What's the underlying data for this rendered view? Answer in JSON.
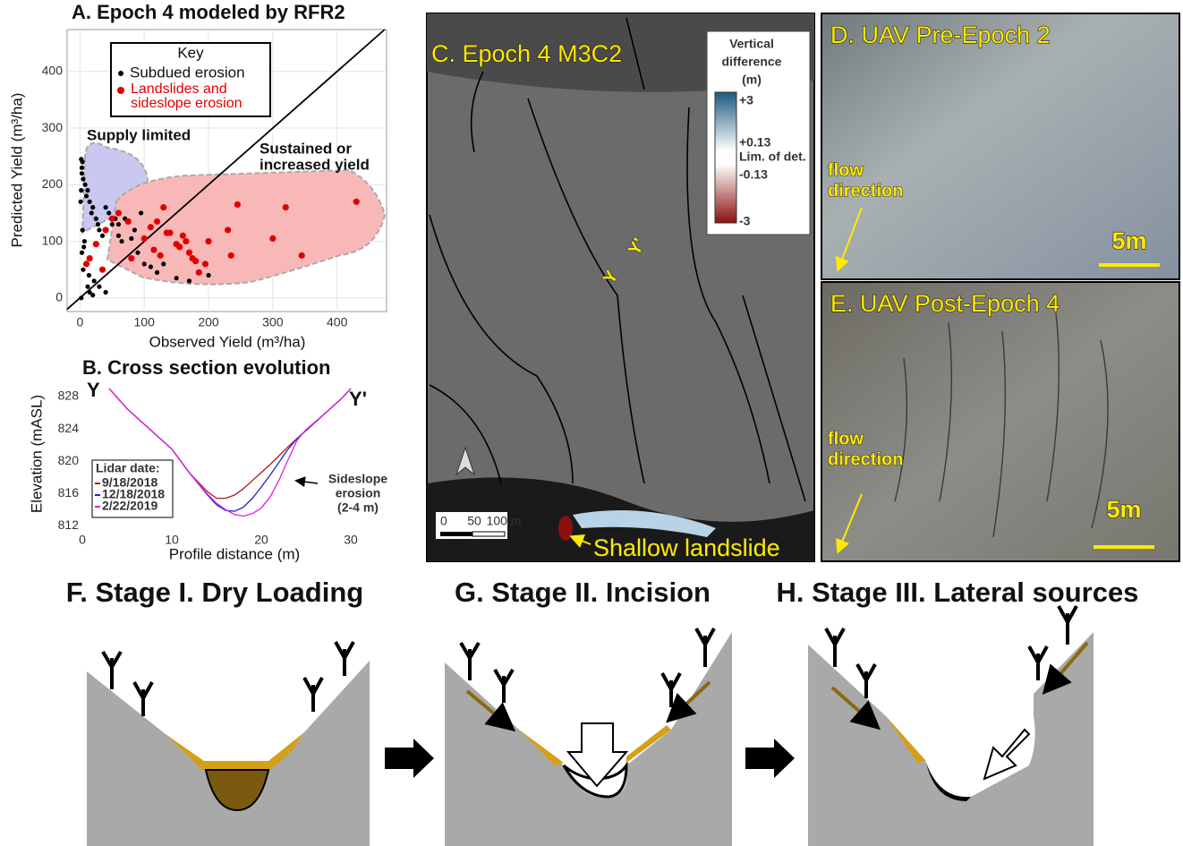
{
  "chart_data": [
    {
      "type": "scatter",
      "title": "A. Epoch 4 modeled by RFR2",
      "x_label": "Observed Yield (m³/ha)",
      "y_label": "Predicted Yield (m³/ha)",
      "xlim": [
        -20,
        477
      ],
      "ylim": [
        -24,
        474
      ],
      "xticks": [
        0,
        100,
        200,
        300,
        400
      ],
      "yticks": [
        0,
        100,
        200,
        300,
        400
      ],
      "grid": true,
      "legend_title": "Key",
      "legend": "upper left",
      "annotations": [
        "Supply limited",
        "Sustained or",
        "increased yield"
      ],
      "series": [
        {
          "name": "Subdued erosion",
          "color": "#000000",
          "x": [
            2,
            3,
            5,
            8,
            10,
            12,
            15,
            18,
            20,
            25,
            28,
            30,
            35,
            40,
            45,
            50,
            55,
            60,
            65,
            70,
            80,
            90,
            100,
            110,
            120,
            130,
            150,
            170,
            200,
            5,
            3,
            7,
            12,
            15,
            20,
            2,
            4,
            6,
            9,
            14,
            22,
            30,
            40,
            60,
            85,
            95,
            1,
            2,
            3,
            4
          ],
          "values": [
            245,
            230,
            210,
            200,
            180,
            190,
            170,
            150,
            160,
            140,
            130,
            120,
            110,
            160,
            150,
            130,
            140,
            110,
            100,
            140,
            105,
            80,
            60,
            55,
            45,
            60,
            35,
            30,
            40,
            50,
            80,
            100,
            20,
            10,
            5,
            0,
            120,
            90,
            60,
            40,
            30,
            20,
            10,
            130,
            120,
            150,
            170,
            190,
            220,
            240
          ]
        },
        {
          "name": "Landslides and sideslope erosion",
          "color": "#e00000",
          "x": [
            10,
            15,
            25,
            35,
            40,
            50,
            60,
            75,
            80,
            100,
            110,
            120,
            125,
            130,
            140,
            150,
            155,
            160,
            165,
            170,
            180,
            195,
            200,
            230,
            235,
            245,
            300,
            320,
            345,
            430,
            115,
            135,
            175,
            185
          ],
          "values": [
            60,
            70,
            95,
            50,
            120,
            140,
            150,
            135,
            70,
            105,
            125,
            135,
            75,
            160,
            115,
            95,
            90,
            110,
            100,
            80,
            65,
            60,
            100,
            120,
            75,
            165,
            105,
            160,
            75,
            170,
            85,
            115,
            70,
            45
          ]
        }
      ]
    },
    {
      "type": "line",
      "title": "B. Cross section evolution",
      "x_label": "Profile distance (m)",
      "y_label": "Elevation (mASL)",
      "xlim": [
        0,
        31
      ],
      "ylim": [
        811.7,
        830
      ],
      "xticks": [
        0,
        10,
        20,
        30
      ],
      "yticks": [
        812,
        816,
        820,
        824,
        828
      ],
      "legend_title": "Lidar date:",
      "legend": "lower left",
      "annotations": [
        "Y",
        "Y'",
        "Sideslope",
        "erosion",
        "(2-4 m)"
      ],
      "x": [
        3,
        5,
        8,
        10,
        12,
        14,
        15,
        16,
        17,
        18,
        19,
        20,
        21,
        22,
        23,
        24,
        25,
        27,
        29,
        30
      ],
      "series": [
        {
          "name": "9/18/2018",
          "color": "#b01818",
          "values": [
            829,
            826.5,
            823.5,
            821.5,
            818.5,
            816.2,
            815.4,
            815.4,
            815.8,
            816.6,
            817.6,
            818.6,
            819.6,
            820.7,
            821.8,
            822.8,
            823.8,
            825.8,
            827.8,
            829
          ]
        },
        {
          "name": "12/18/2018",
          "color": "#2020d0",
          "values": [
            829,
            826.5,
            823.5,
            821.5,
            818.5,
            815.8,
            814.6,
            813.9,
            813.8,
            814.3,
            815.4,
            816.8,
            818.3,
            819.9,
            821.5,
            822.8,
            823.8,
            825.8,
            827.8,
            829
          ]
        },
        {
          "name": "2/22/2019",
          "color": "#e020e0",
          "values": [
            829,
            826.5,
            823.5,
            821.5,
            818.5,
            815.9,
            814.8,
            814.0,
            813.4,
            813.2,
            813.5,
            814.2,
            815.6,
            817.7,
            820.2,
            822.6,
            823.9,
            825.8,
            827.8,
            829
          ]
        }
      ]
    }
  ],
  "map": {
    "title": "C. Epoch 4 M3C2",
    "colorbar_title": [
      "Vertical",
      "difference",
      "(m)"
    ],
    "colorbar_labels": [
      "+3",
      "+0.13",
      "Lim. of det.",
      "-0.13",
      "-3"
    ],
    "scale_labels": [
      "0",
      "50",
      "100 m"
    ],
    "section_labels": [
      "Y",
      "Y'"
    ],
    "annotation": "Shallow landslide"
  },
  "photos": [
    {
      "title": "D. UAV Pre-Epoch 2",
      "annotation": [
        "flow",
        "direction"
      ],
      "scale": "5m"
    },
    {
      "title": "E. UAV Post-Epoch 4",
      "annotation": [
        "flow",
        "direction"
      ],
      "scale": "5m"
    }
  ],
  "stages": [
    "F. Stage I. Dry Loading",
    "G. Stage II. Incision",
    "H. Stage III. Lateral sources"
  ]
}
